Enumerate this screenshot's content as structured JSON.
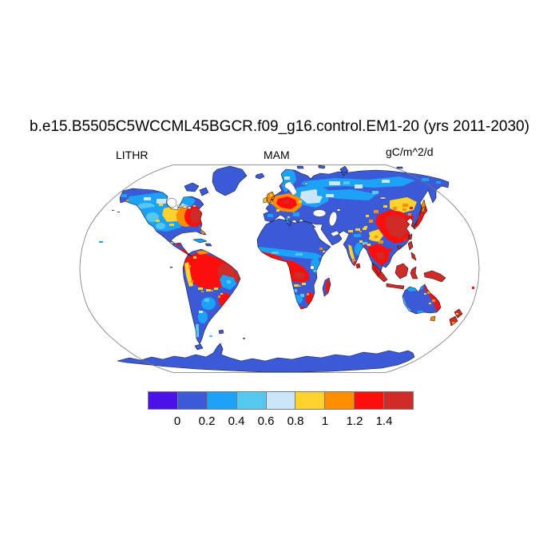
{
  "title": "b.e15.B5505C5WCCML45BGCR.f09_g16.control.EM1-20 (yrs 2011-2030)",
  "header": {
    "variable_label": "LITHR",
    "season_label": "MAM",
    "units_label": "gC/m^2/d"
  },
  "colorbar": {
    "ticks": [
      "0",
      "0.2",
      "0.4",
      "0.6",
      "0.8",
      "1",
      "1.2",
      "1.4"
    ],
    "colors": [
      "#4B11E9",
      "#3A5AD7",
      "#1CA2F6",
      "#55C8F0",
      "#CBE6F8",
      "#FFD22D",
      "#FF8D00",
      "#FA0F0C",
      "#CF2B27"
    ]
  },
  "palette": {
    "v0": "#4B11E9",
    "v1": "#3A5AD7",
    "v2": "#1CA2F6",
    "v3": "#55C8F0",
    "v4": "#CBE6F8",
    "v5": "#FFD22D",
    "v6": "#FF8D00",
    "v7": "#FA0F0C",
    "v8": "#CF2B27",
    "ocean": "#FFFFFF",
    "lake": "#FFFFFF",
    "boundary": "#777777",
    "coast": "#1A1A1A",
    "speck": "#444444"
  },
  "chart_data": {
    "type": "heatmap",
    "subtype": "global-map-robinson-projection",
    "title": "b.e15.B5505C5WCCML45BGCR.f09_g16.control.EM1-20 (yrs 2011-2030)",
    "variable": "LITHR",
    "season": "MAM",
    "units": "gC/m^2/d",
    "levels": [
      0,
      0.2,
      0.4,
      0.6,
      0.8,
      1,
      1.2,
      1.4
    ],
    "palette": [
      "#4B11E9",
      "#3A5AD7",
      "#1CA2F6",
      "#55C8F0",
      "#CBE6F8",
      "#FFD22D",
      "#FF8D00",
      "#FA0F0C",
      "#CF2B27"
    ],
    "legend_position": "bottom",
    "grid": false,
    "ocean_masked": true,
    "regions": [
      {
        "region": "Amazon Basin",
        "value": "> 1.4"
      },
      {
        "region": "Congo Basin / Guinea coast",
        "value": "> 1.4"
      },
      {
        "region": "Indochina, Indonesia, New Guinea, Philippines",
        "value": "> 1.4"
      },
      {
        "region": "Eastern China, Korea, Japan",
        "value": "1.2 - > 1.4"
      },
      {
        "region": "Eastern United States",
        "value": "1.2 - 1.4"
      },
      {
        "region": "Western / Central Europe, UK",
        "value": "0.8 - 1.4"
      },
      {
        "region": "Southeast Brazil coast",
        "value": "1.2 - 1.4"
      },
      {
        "region": "Southeast Africa, Madagascar east",
        "value": "1.2 - 1.4"
      },
      {
        "region": "East Australian coast, New Zealand",
        "value": "1.0 - > 1.4"
      },
      {
        "region": "US Midwest, Sahel fringe, Himalaya fringe, Amur region",
        "value": "0.6 - 1.0"
      },
      {
        "region": "Boreal Canada, Scandinavia, Siberia",
        "value": "0.2 - 0.6"
      },
      {
        "region": "Sahara, Arabia, Central Asia, central Australia",
        "value": "0 - 0.2"
      },
      {
        "region": "Greenland, Antarctica, high Arctic",
        "value": "0 - 0.2"
      }
    ]
  }
}
